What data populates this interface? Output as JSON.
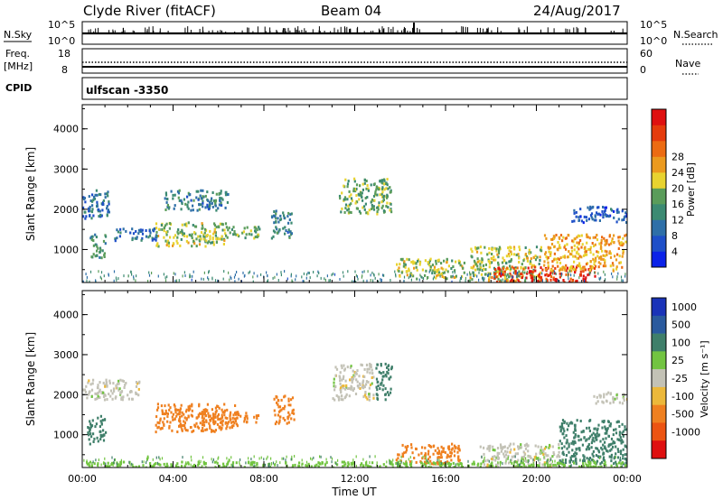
{
  "header": {
    "radar_title": "Clyde River (fitACF)",
    "beam": "Beam 04",
    "date": "24/Aug/2017"
  },
  "nsky_panel": {
    "left_label": "N.Sky",
    "right_label": "N.Search",
    "ticks_left": [
      "10^5",
      "10^0"
    ],
    "ticks_right": [
      "10^5",
      "10^0"
    ]
  },
  "freq_panel": {
    "left_label_1": "Freq.",
    "left_label_2": "[MHz]",
    "right_label": "Nave",
    "ticks_left": [
      "18",
      "8"
    ],
    "ticks_right": [
      "60",
      "0"
    ]
  },
  "cpid_panel": {
    "label": "CPID",
    "value": "ulfscan -3350"
  },
  "chart_data": [
    {
      "type": "heatmap",
      "name": "power",
      "ylabel": "Slant Range [km]",
      "ylim": [
        180,
        4600
      ],
      "y_ticks": [
        "1000",
        "2000",
        "3000",
        "4000"
      ],
      "x_ticks": [
        "00:00",
        "04:00",
        "08:00",
        "12:00",
        "16:00",
        "20:00",
        "00:00"
      ],
      "xlim_hours": [
        0,
        24
      ],
      "colorbar": {
        "label": "Power [dB]",
        "ticks": [
          "4",
          "8",
          "12",
          "16",
          "20",
          "24",
          "28"
        ],
        "colors": [
          "#0b22e8",
          "#1e4fc8",
          "#2e6fa8",
          "#3c8a72",
          "#5a9c5a",
          "#e8d330",
          "#eb9a1e",
          "#ec6b12",
          "#e53b0c",
          "#df1010"
        ]
      },
      "regions": [
        {
          "t0": 0.0,
          "t1": 1.2,
          "r0": 1800,
          "r1": 2500,
          "power": 8
        },
        {
          "t0": 0.3,
          "t1": 1.0,
          "r0": 800,
          "r1": 1400,
          "power": 12
        },
        {
          "t0": 1.4,
          "t1": 3.3,
          "r0": 1250,
          "r1": 1550,
          "power": 8
        },
        {
          "t0": 3.2,
          "t1": 6.3,
          "r0": 1100,
          "r1": 1700,
          "power": 16
        },
        {
          "t0": 6.3,
          "t1": 7.8,
          "r0": 1300,
          "r1": 1600,
          "power": 14
        },
        {
          "t0": 3.6,
          "t1": 6.4,
          "r0": 2000,
          "r1": 2500,
          "power": 10
        },
        {
          "t0": 8.3,
          "t1": 9.2,
          "r0": 1300,
          "r1": 2000,
          "power": 10
        },
        {
          "t0": 11.3,
          "t1": 13.6,
          "r0": 1900,
          "r1": 2800,
          "power": 14
        },
        {
          "t0": 13.8,
          "t1": 16.8,
          "r0": 300,
          "r1": 800,
          "power": 16
        },
        {
          "t0": 17.0,
          "t1": 20.2,
          "r0": 200,
          "r1": 1100,
          "power": 16
        },
        {
          "t0": 18.0,
          "t1": 22.6,
          "r0": 200,
          "r1": 600,
          "power": 28
        },
        {
          "t0": 20.3,
          "t1": 24.0,
          "r0": 500,
          "r1": 1400,
          "power": 20
        },
        {
          "t0": 21.5,
          "t1": 24.0,
          "r0": 1700,
          "r1": 2100,
          "power": 6
        }
      ]
    },
    {
      "type": "heatmap",
      "name": "velocity",
      "ylabel": "Slant Range [km]",
      "ylim": [
        180,
        4600
      ],
      "y_ticks": [
        "1000",
        "2000",
        "3000",
        "4000"
      ],
      "x_ticks": [
        "00:00",
        "04:00",
        "08:00",
        "12:00",
        "16:00",
        "20:00",
        "00:00"
      ],
      "xlabel": "Time UT",
      "xlim_hours": [
        0,
        24
      ],
      "colorbar": {
        "label": "Velocity [m s⁻¹]",
        "ticks": [
          "1000",
          "500",
          "100",
          "25",
          "-25",
          "-100",
          "-500",
          "-1000"
        ],
        "colors": [
          "#1a33b8",
          "#2a5a9e",
          "#3f7f6a",
          "#72c441",
          "#c3c2b6",
          "#ecb83a",
          "#ef8020",
          "#ec5412",
          "#df1010"
        ]
      },
      "regions": [
        {
          "t0": 0.0,
          "t1": 2.5,
          "r0": 1900,
          "r1": 2400,
          "velocity": 0
        },
        {
          "t0": 0.2,
          "t1": 1.0,
          "r0": 800,
          "r1": 1500,
          "velocity": 300
        },
        {
          "t0": 3.2,
          "t1": 6.8,
          "r0": 1100,
          "r1": 1800,
          "velocity": -300
        },
        {
          "t0": 5.0,
          "t1": 7.8,
          "r0": 1300,
          "r1": 1600,
          "velocity": -300
        },
        {
          "t0": 8.4,
          "t1": 9.3,
          "r0": 1300,
          "r1": 2000,
          "velocity": -150
        },
        {
          "t0": 11.0,
          "t1": 12.8,
          "r0": 1900,
          "r1": 2800,
          "velocity": 0
        },
        {
          "t0": 12.9,
          "t1": 13.6,
          "r0": 1900,
          "r1": 2800,
          "velocity": 300
        },
        {
          "t0": 13.8,
          "t1": 16.6,
          "r0": 300,
          "r1": 800,
          "velocity": -150
        },
        {
          "t0": 17.5,
          "t1": 21.0,
          "r0": 200,
          "r1": 800,
          "velocity": 0
        },
        {
          "t0": 21.0,
          "t1": 24.0,
          "r0": 300,
          "r1": 1400,
          "velocity": 150
        },
        {
          "t0": 22.5,
          "t1": 24.0,
          "r0": 1800,
          "r1": 2100,
          "velocity": 0
        },
        {
          "t0": 0.0,
          "t1": 24.0,
          "r0": 180,
          "r1": 350,
          "velocity": 60
        }
      ]
    }
  ]
}
